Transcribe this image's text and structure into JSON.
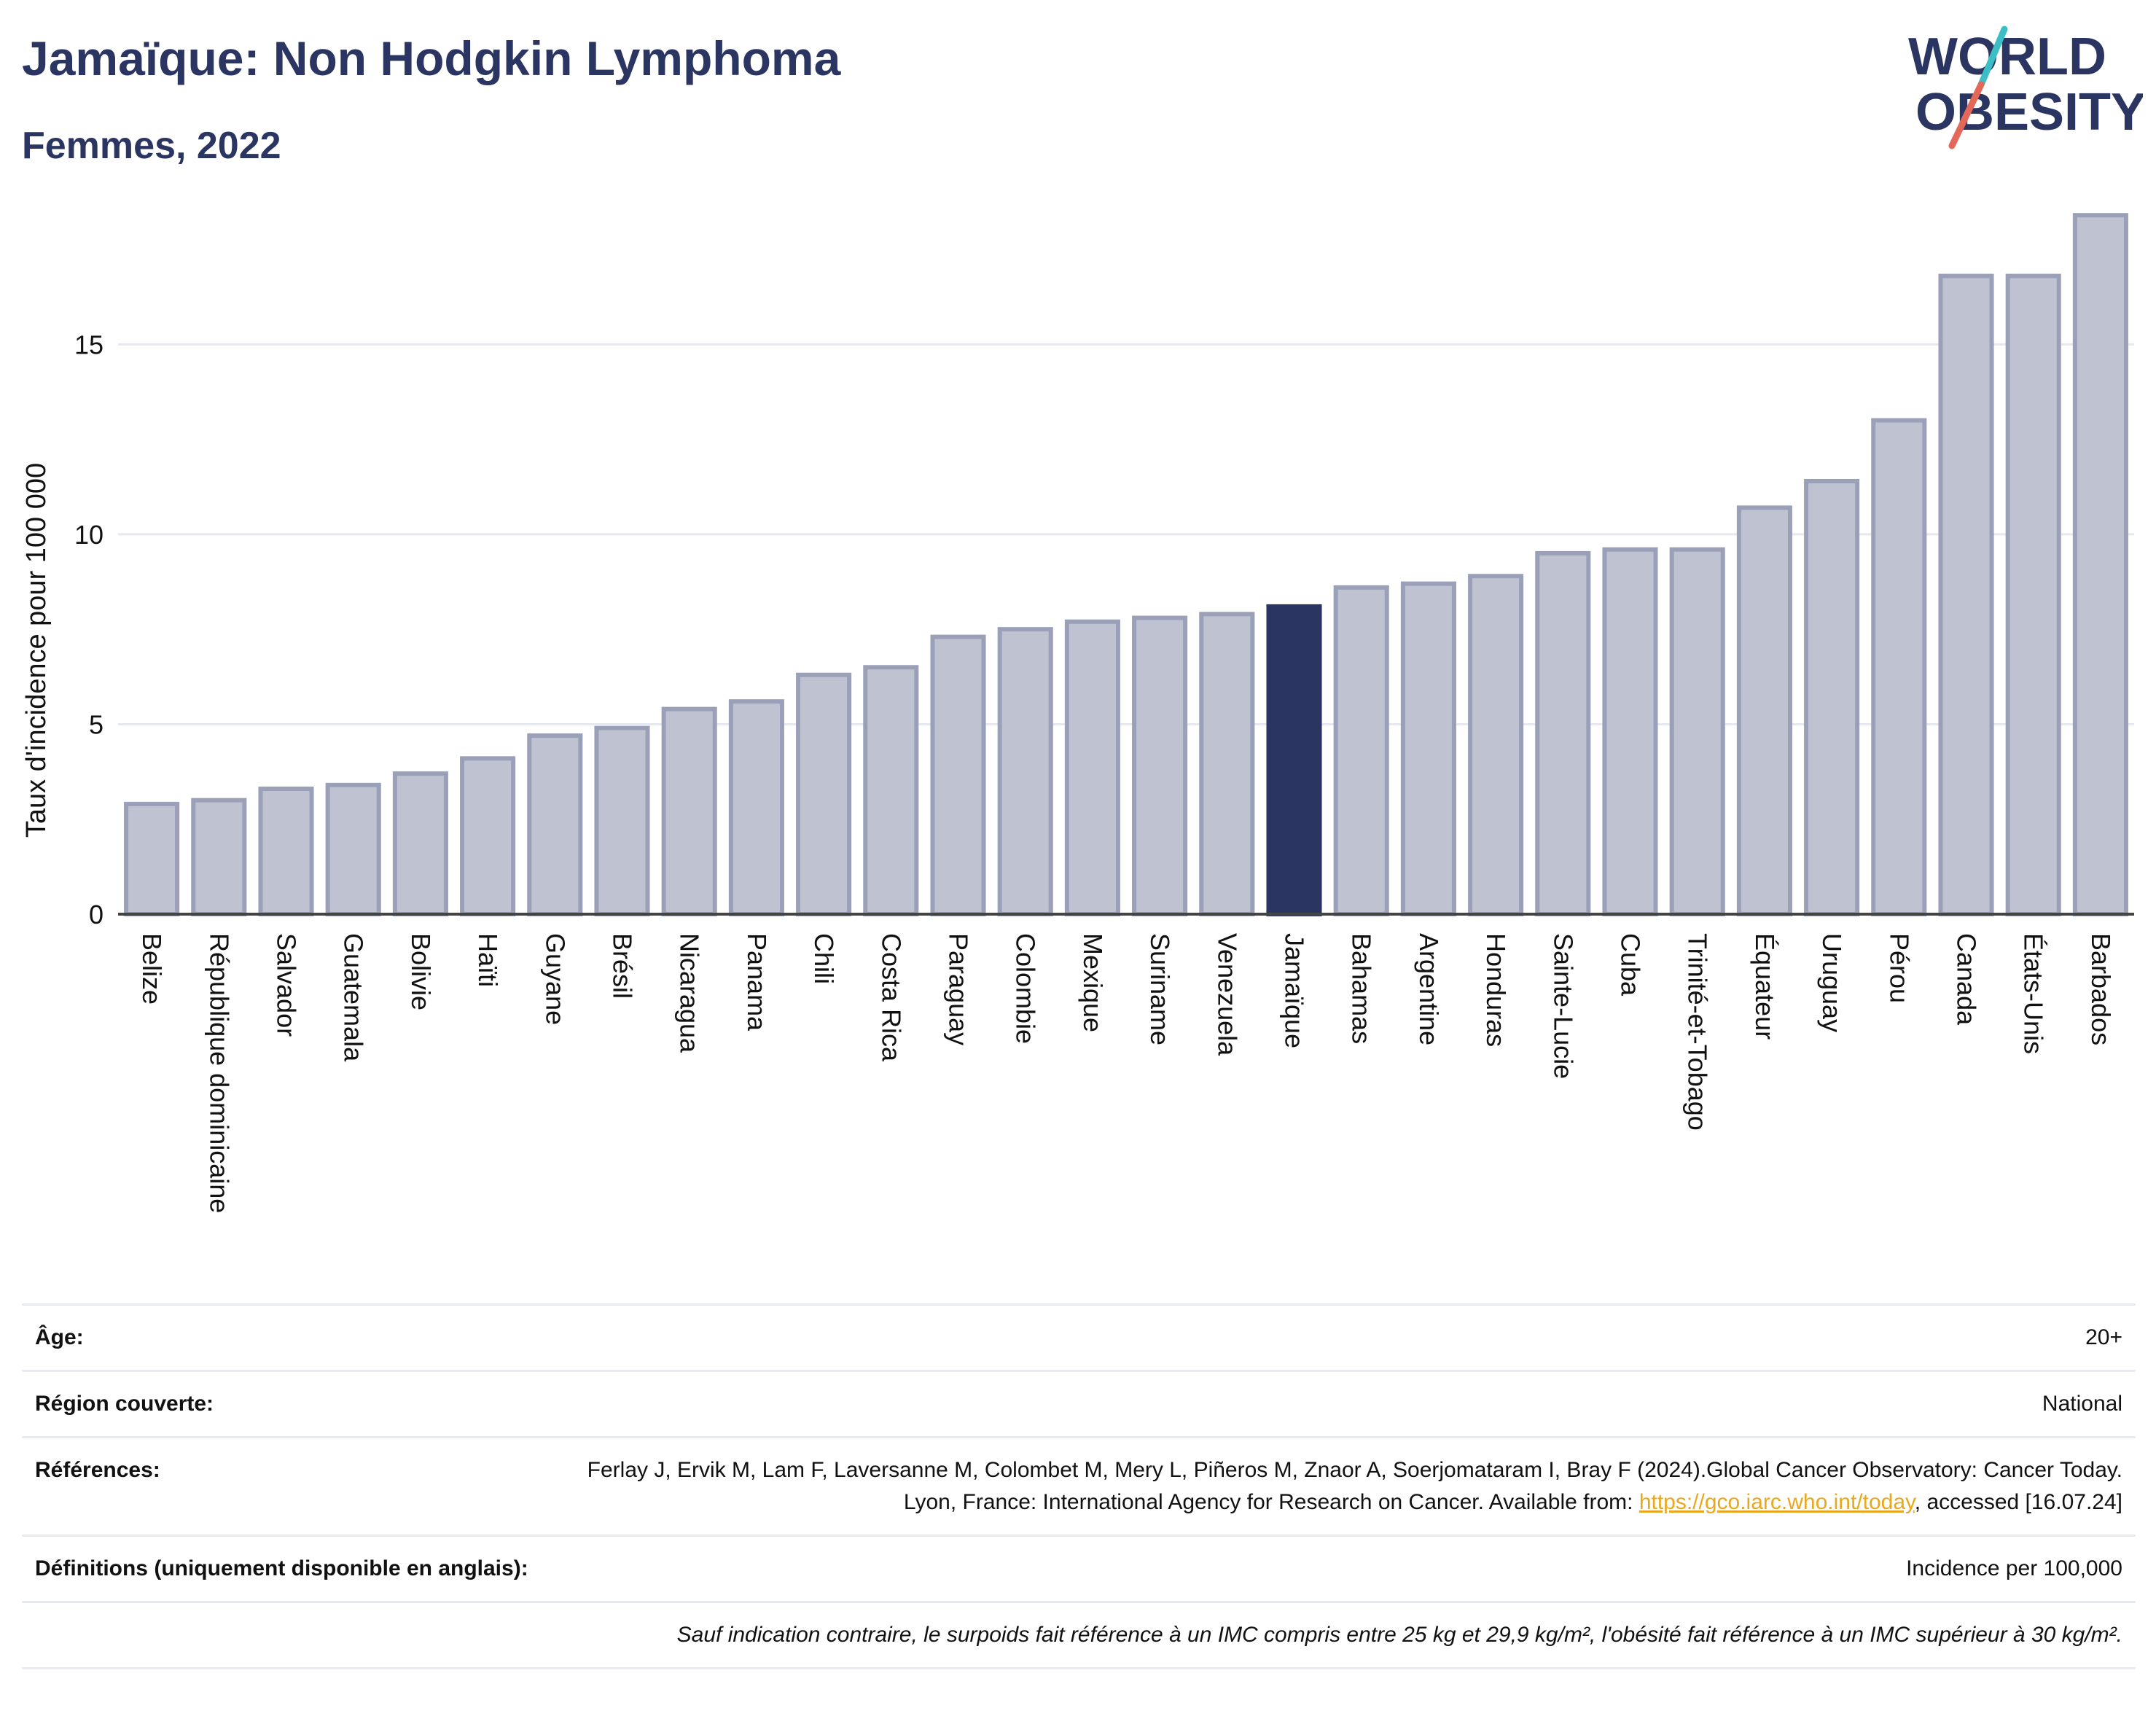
{
  "header": {
    "title": "Jamaïque: Non Hodgkin Lymphoma",
    "subtitle": "Femmes, 2022"
  },
  "logo": {
    "line1": "WORLD",
    "line2": "OBESITY",
    "color_text": "#2b3561",
    "color_slash_teal": "#3bbfc4",
    "color_slash_red": "#e4685a"
  },
  "chart_data": {
    "type": "bar",
    "ylabel": "Taux d'incidence pour 100 000",
    "xlabel": "",
    "ylim": [
      0,
      18.5
    ],
    "yticks": [
      0,
      5,
      10,
      15
    ],
    "grid": true,
    "highlight": "Jamaïque",
    "colors": {
      "bar": "#bfc3d1",
      "bar_stroke": "#9aa0b8",
      "highlight": "#2b3561"
    },
    "categories": [
      "Belize",
      "République dominicaine",
      "Salvador",
      "Guatemala",
      "Bolivie",
      "Haïti",
      "Guyane",
      "Brésil",
      "Nicaragua",
      "Panama",
      "Chili",
      "Costa Rica",
      "Paraguay",
      "Colombie",
      "Mexique",
      "Suriname",
      "Venezuela",
      "Jamaïque",
      "Bahamas",
      "Argentine",
      "Honduras",
      "Sainte-Lucie",
      "Cuba",
      "Trinité-et-Tobago",
      "Équateur",
      "Uruguay",
      "Pérou",
      "Canada",
      "États-Unis",
      "Barbados"
    ],
    "values": [
      2.9,
      3.0,
      3.3,
      3.4,
      3.7,
      4.1,
      4.7,
      4.9,
      5.4,
      5.6,
      6.3,
      6.5,
      7.3,
      7.5,
      7.7,
      7.8,
      7.9,
      8.1,
      8.6,
      8.7,
      8.9,
      9.5,
      9.6,
      9.6,
      10.7,
      11.4,
      13.0,
      16.8,
      16.8,
      18.4
    ]
  },
  "info": {
    "age_label": "Âge:",
    "age_value": "20+",
    "region_label": "Région couverte:",
    "region_value": "National",
    "ref_label": "Références:",
    "ref_text_1": "Ferlay J, Ervik M, Lam F, Laversanne M, Colombet M, Mery L, Piñeros M, Znaor A, Soerjomataram I, Bray F (2024).Global Cancer Observatory: Cancer Today. Lyon, France: International Agency for Research on Cancer. Available from: ",
    "ref_link": "https://gco.iarc.who.int/today",
    "ref_text_2": ", accessed [16.07.24]",
    "def_label": "Définitions (uniquement disponible en anglais):",
    "def_value": "Incidence per 100,000",
    "note": "Sauf indication contraire, le surpoids fait référence à un IMC compris entre 25 kg et 29,9 kg/m², l'obésité fait référence à un IMC supérieur à 30 kg/m²."
  }
}
